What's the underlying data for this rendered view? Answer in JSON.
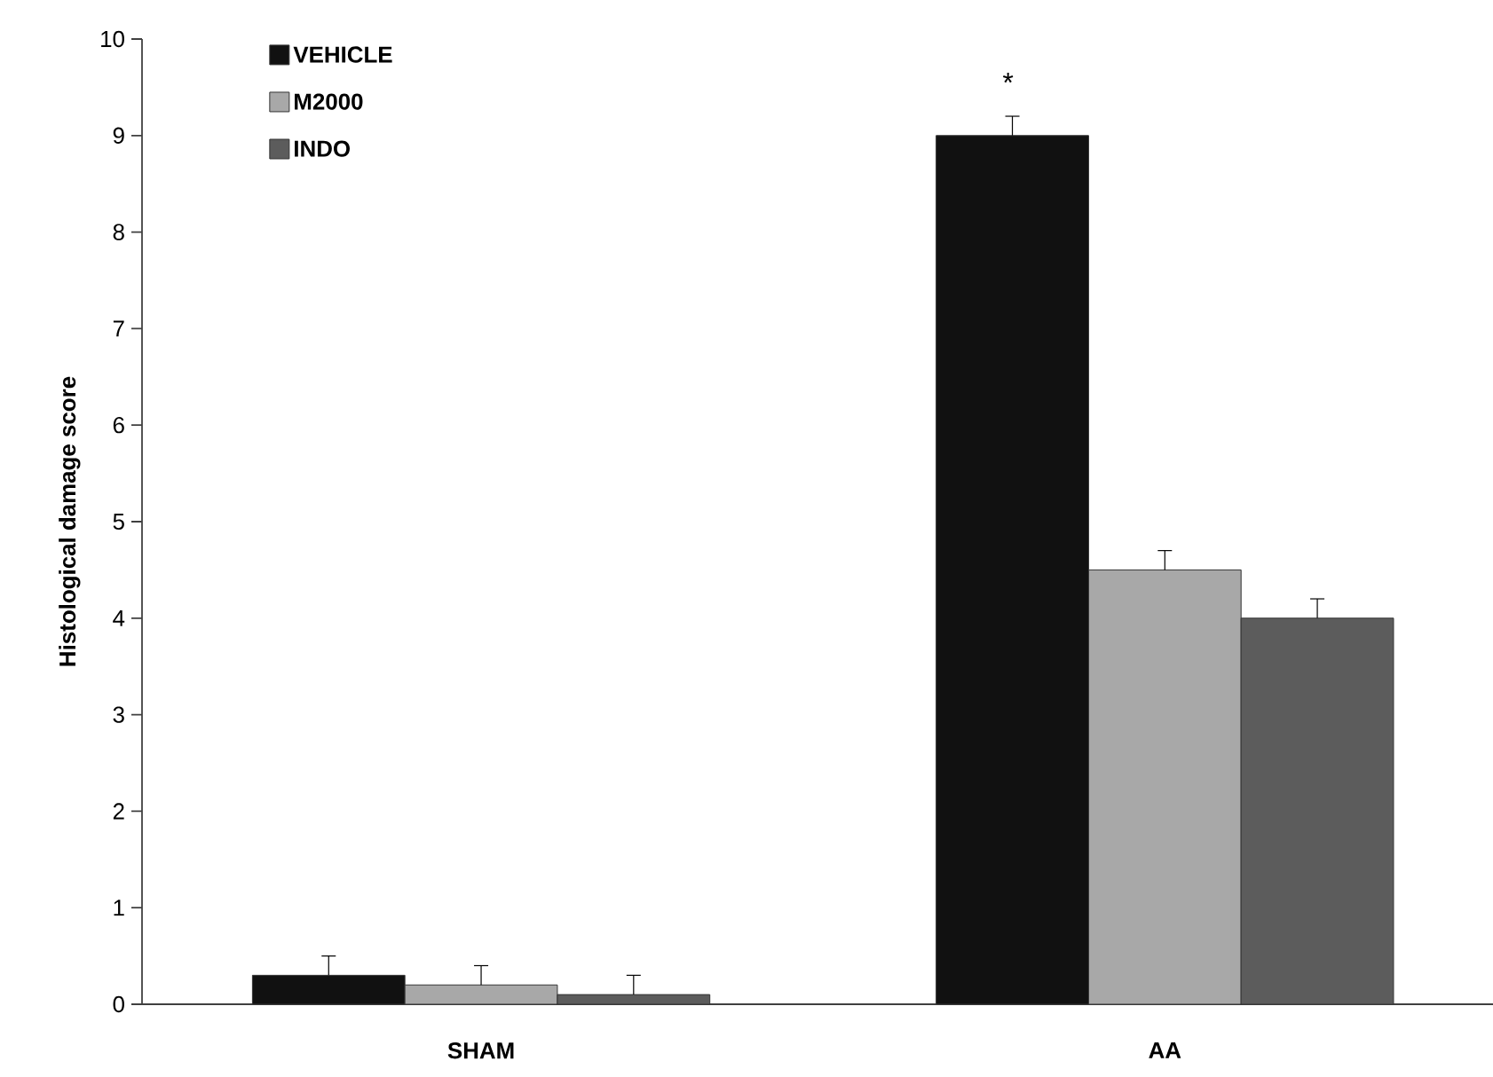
{
  "chart_data": {
    "type": "bar",
    "ylabel": "Histological damage score",
    "categories": [
      "SHAM",
      "AA"
    ],
    "series": [
      {
        "name": "VEHICLE",
        "color": "#111111",
        "values": [
          0.3,
          9.0
        ],
        "errors": [
          0.2,
          0.2
        ]
      },
      {
        "name": "M2000",
        "color": "#a8a8a8",
        "values": [
          0.2,
          4.5
        ],
        "errors": [
          0.2,
          0.2
        ]
      },
      {
        "name": "INDO",
        "color": "#5c5c5c",
        "values": [
          0.1,
          4.0
        ],
        "errors": [
          0.2,
          0.2
        ]
      }
    ],
    "ylim": [
      0,
      10
    ],
    "yticks": [
      0,
      1,
      2,
      3,
      4,
      5,
      6,
      7,
      8,
      9,
      10
    ],
    "annotations": [
      "*"
    ],
    "legend": "top left",
    "grid": false
  }
}
